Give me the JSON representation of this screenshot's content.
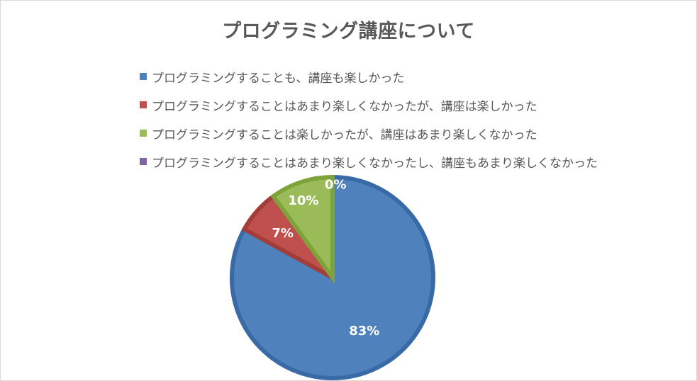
{
  "chart_data": {
    "type": "pie",
    "title": "プログラミング講座について",
    "categories": [
      "プログラミングすることも、講座も楽しかった",
      "プログラミングすることはあまり楽しくなかったが、講座は楽しかった",
      "プログラミングすることは楽しかったが、講座はあまり楽しくなかった",
      "プログラミングすることはあまり楽しくなかったし、講座もあまり楽しくなかった"
    ],
    "values": [
      83,
      7,
      10,
      0
    ],
    "data_labels": [
      "83%",
      "7%",
      "10%",
      "0%"
    ],
    "colors": [
      "#4f81bd",
      "#c0504d",
      "#9bbb59",
      "#8064a2"
    ],
    "border_colors": [
      "#3a6aa6",
      "#a33d3a",
      "#7ea33a",
      "#664e88"
    ],
    "legend_position": "top",
    "start_angle_deg": 0,
    "direction": "clockwise"
  }
}
